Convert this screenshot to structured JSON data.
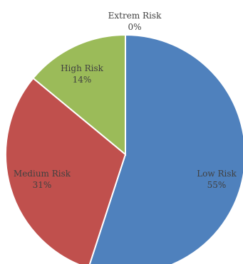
{
  "chart_data": {
    "type": "pie",
    "title": "",
    "slices": [
      {
        "label": "Low Risk",
        "value": 55,
        "display": "55%",
        "color": "#4f81bd"
      },
      {
        "label": "Medium Risk",
        "value": 31,
        "display": "31%",
        "color": "#c0504d"
      },
      {
        "label": "High Risk",
        "value": 14,
        "display": "14%",
        "color": "#9bbb59"
      },
      {
        "label": "Extrem Risk",
        "value": 0,
        "display": "0%",
        "color": "#8064a2"
      }
    ],
    "start_angle": "top",
    "direction": "clockwise",
    "slice_separator_color": "#ffffff"
  }
}
